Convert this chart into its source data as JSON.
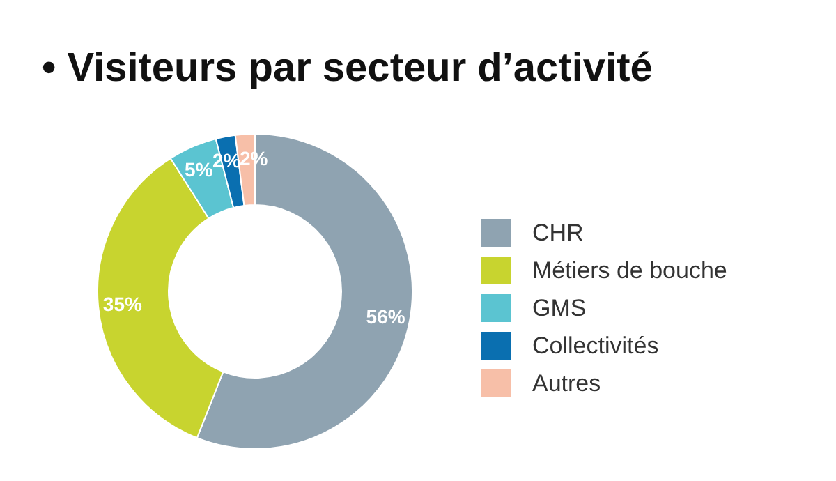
{
  "chart_data": {
    "type": "donut",
    "title": "• Visiteurs par secteur d’activité",
    "categories": [
      "CHR",
      "Métiers de bouche",
      "GMS",
      "Collectivités",
      "Autres"
    ],
    "values": [
      56,
      35,
      5,
      2,
      2
    ],
    "value_labels": [
      "56%",
      "35%",
      "5%",
      "2%",
      "2%"
    ],
    "colors": [
      "#8fa3b1",
      "#c8d42f",
      "#5bc4d1",
      "#0a6fb0",
      "#f7bfa8"
    ],
    "legend": "right"
  }
}
